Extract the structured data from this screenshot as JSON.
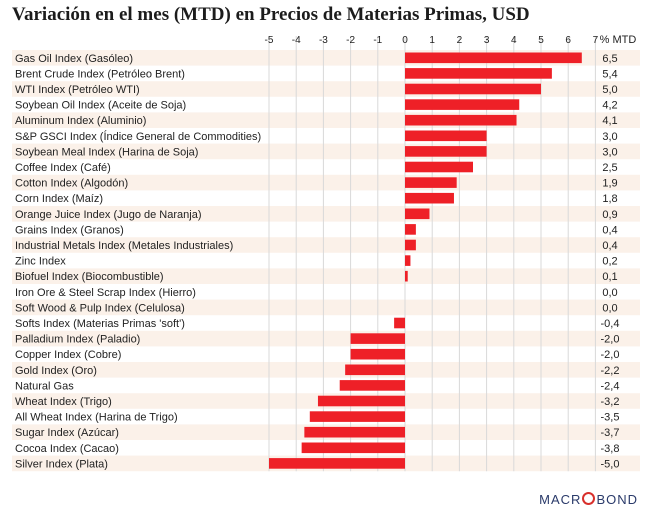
{
  "colors": {
    "bar": "#ee2027",
    "band": "#fbf1e9",
    "grid": "#d9d9d9",
    "text": "#222222"
  },
  "chart_data": {
    "type": "bar",
    "orientation": "horizontal",
    "title": "Variación en el mes (MTD) en Precios de Materias Primas, USD",
    "value_column_header": "% MTD",
    "xlim": [
      -5,
      7
    ],
    "xticks": [
      "-5",
      "-4",
      "-3",
      "-2",
      "-1",
      "0",
      "1",
      "2",
      "3",
      "4",
      "5",
      "6",
      "7"
    ],
    "grid": true,
    "categories": [
      "Gas Oil Index (Gasóleo)",
      "Brent Crude Index (Petróleo Brent)",
      "WTI Index (Petróleo WTI)",
      "Soybean Oil Index (Aceite de Soja)",
      "Aluminum Index (Aluminio)",
      "S&P GSCI Index (Índice General de Commodities)",
      "Soybean Meal Index (Harina de Soja)",
      "Coffee Index (Café)",
      "Cotton Index (Algodón)",
      "Corn Index (Maíz)",
      "Orange Juice Index (Jugo de Naranja)",
      "Grains Index (Granos)",
      "Industrial Metals Index (Metales Industriales)",
      "Zinc Index",
      "Biofuel Index (Biocombustible)",
      "Iron Ore & Steel Scrap Index (Hierro)",
      "Soft Wood & Pulp Index (Celulosa)",
      "Softs Index (Materias Primas 'soft')",
      "Palladium Index (Paladio)",
      "Copper Index (Cobre)",
      "Gold Index (Oro)",
      "Natural Gas",
      "Wheat Index (Trigo)",
      "All Wheat Index (Harina de Trigo)",
      "Sugar Index (Azúcar)",
      "Cocoa Index (Cacao)",
      "Silver Index (Plata)"
    ],
    "values": [
      6.5,
      5.4,
      5.0,
      4.2,
      4.1,
      3.0,
      3.0,
      2.5,
      1.9,
      1.8,
      0.9,
      0.4,
      0.4,
      0.2,
      0.1,
      0.0,
      0.0,
      -0.4,
      -2.0,
      -2.0,
      -2.2,
      -2.4,
      -3.2,
      -3.5,
      -3.7,
      -3.8,
      -5.0
    ],
    "value_labels": [
      "6,5",
      "5,4",
      "5,0",
      "4,2",
      "4,1",
      "3,0",
      "3,0",
      "2,5",
      "1,9",
      "1,8",
      "0,9",
      "0,4",
      "0,4",
      "0,2",
      "0,1",
      "0,0",
      "0,0",
      "-0,4",
      "-2,0",
      "-2,0",
      "-2,2",
      "-2,4",
      "-3,2",
      "-3,5",
      "-3,7",
      "-3,8",
      "-5,0"
    ]
  },
  "footer": {
    "logo": [
      "MACR",
      "BOND"
    ]
  }
}
